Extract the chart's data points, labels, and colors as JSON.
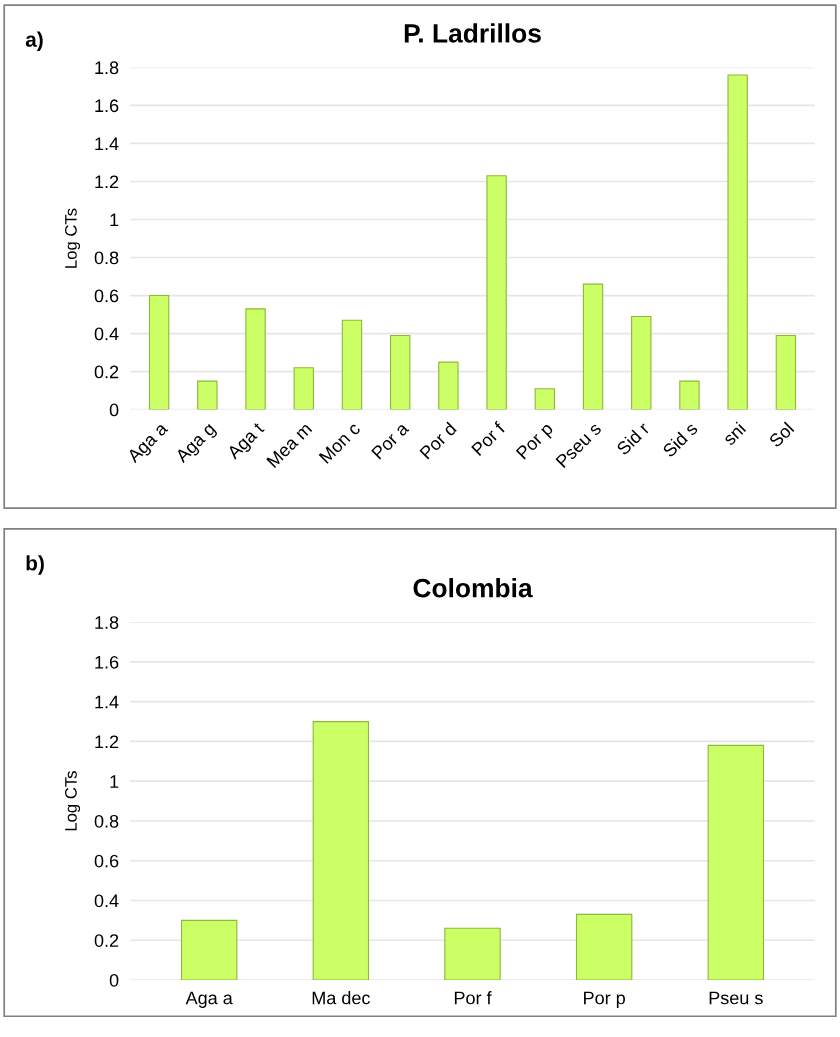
{
  "chart_data": [
    {
      "type": "bar",
      "title": "P. Ladrillos",
      "ylabel": "Log CTs",
      "annotations": [
        "a)"
      ],
      "categories": [
        "Aga a",
        "Aga g",
        "Aga t",
        "Mea m",
        "Mon c",
        "Por a",
        "Por d",
        "Por f",
        "Por p",
        "Pseu s",
        "Sid r",
        "Sid s",
        "sni",
        "Sol"
      ],
      "values": [
        0.6,
        0.15,
        0.53,
        0.22,
        0.47,
        0.39,
        0.25,
        1.23,
        0.11,
        0.66,
        0.49,
        0.15,
        1.76,
        0.39
      ],
      "color": "#ccff66",
      "ylim": [
        0,
        1.8
      ],
      "yticks": [
        0,
        0.2,
        0.4,
        0.6,
        0.8,
        1,
        1.2,
        1.4,
        1.6,
        1.8
      ],
      "grid": "y"
    },
    {
      "type": "bar",
      "title": "Colombia",
      "ylabel": "Log CTs",
      "annotations": [
        "b)"
      ],
      "categories": [
        "Aga a",
        "Ma dec",
        "Por f",
        "Por p",
        "Pseu s"
      ],
      "values": [
        0.3,
        1.3,
        0.26,
        0.33,
        1.18
      ],
      "color": "#ccff66",
      "ylim": [
        0,
        1.8
      ],
      "yticks": [
        0,
        0.2,
        0.4,
        0.6,
        0.8,
        1,
        1.2,
        1.4,
        1.6,
        1.8
      ],
      "grid": "y"
    }
  ]
}
